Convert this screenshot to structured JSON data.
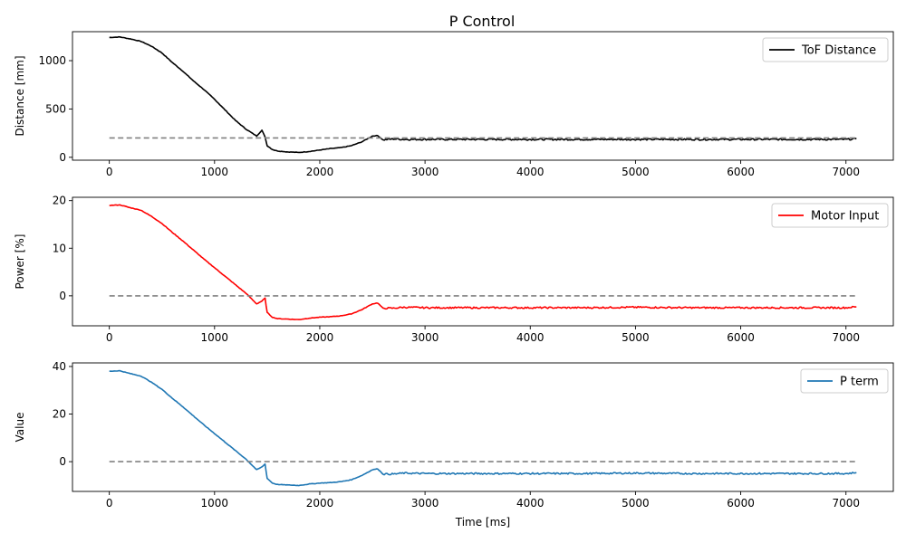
{
  "figure_title": "P Control",
  "chart_data": [
    {
      "type": "line",
      "title": "P Control",
      "xlabel": "",
      "ylabel": "Distance [mm]",
      "xlim": [
        -350,
        7450
      ],
      "ylim": [
        -30,
        1300
      ],
      "xticks": [
        "0",
        "1000",
        "2000",
        "3000",
        "4000",
        "5000",
        "6000",
        "7000"
      ],
      "yticks": [
        "0",
        "500",
        "1000"
      ],
      "legend": "upper-right",
      "series": [
        {
          "name": "ToF Distance",
          "color": "#000000",
          "x": [
            0,
            100,
            200,
            300,
            400,
            500,
            600,
            700,
            800,
            900,
            1000,
            1100,
            1200,
            1300,
            1400,
            1450,
            1480,
            1500,
            1550,
            1600,
            1700,
            1800,
            1900,
            2000,
            2100,
            2200,
            2300,
            2400,
            2500,
            2550,
            2600,
            2700,
            2800,
            3000,
            3500,
            4000,
            4500,
            5000,
            5500,
            6000,
            6500,
            7000,
            7100
          ],
          "y": [
            1240,
            1245,
            1225,
            1200,
            1150,
            1080,
            980,
            890,
            790,
            700,
            600,
            490,
            380,
            290,
            220,
            280,
            210,
            120,
            80,
            65,
            55,
            50,
            60,
            75,
            90,
            100,
            120,
            160,
            220,
            225,
            180,
            190,
            185,
            185,
            185,
            185,
            185,
            185,
            185,
            185,
            185,
            185,
            190
          ]
        },
        {
          "name": "",
          "color": "#808080",
          "dashed": true,
          "x": [
            0,
            7100
          ],
          "y": [
            200,
            200
          ]
        }
      ]
    },
    {
      "type": "line",
      "xlabel": "",
      "ylabel": "Power [%]",
      "xlim": [
        -350,
        7450
      ],
      "ylim": [
        -6.3,
        20.7
      ],
      "xticks": [
        "0",
        "1000",
        "2000",
        "3000",
        "4000",
        "5000",
        "6000",
        "7000"
      ],
      "yticks": [
        "0",
        "10",
        "20"
      ],
      "legend": "upper-right",
      "series": [
        {
          "name": "Motor Input",
          "color": "#ff0000",
          "x": [
            0,
            100,
            200,
            300,
            400,
            500,
            600,
            700,
            800,
            900,
            1000,
            1100,
            1200,
            1300,
            1400,
            1450,
            1480,
            1500,
            1550,
            1600,
            1700,
            1800,
            1900,
            2000,
            2100,
            2200,
            2300,
            2400,
            2500,
            2550,
            2600,
            2700,
            2800,
            3000,
            3500,
            4000,
            4500,
            5000,
            5500,
            6000,
            6500,
            7000,
            7100
          ],
          "y": [
            19,
            19.1,
            18.5,
            18,
            16.7,
            15.2,
            13.3,
            11.5,
            9.6,
            7.7,
            5.9,
            4.1,
            2.3,
            0.5,
            -1.7,
            -1.1,
            -0.5,
            -3.5,
            -4.5,
            -4.8,
            -4.9,
            -5,
            -4.7,
            -4.5,
            -4.4,
            -4.2,
            -3.8,
            -2.9,
            -1.7,
            -1.5,
            -2.6,
            -2.6,
            -2.4,
            -2.5,
            -2.5,
            -2.5,
            -2.5,
            -2.4,
            -2.5,
            -2.5,
            -2.5,
            -2.5,
            -2.3
          ]
        },
        {
          "name": "",
          "color": "#808080",
          "dashed": true,
          "x": [
            0,
            7100
          ],
          "y": [
            0,
            0
          ]
        }
      ]
    },
    {
      "type": "line",
      "xlabel": "Time [ms]",
      "ylabel": "Value",
      "xlim": [
        -350,
        7450
      ],
      "ylim": [
        -12.5,
        41.5
      ],
      "xticks": [
        "0",
        "1000",
        "2000",
        "3000",
        "4000",
        "5000",
        "6000",
        "7000"
      ],
      "yticks": [
        "0",
        "20",
        "40"
      ],
      "legend": "upper-right",
      "series": [
        {
          "name": "P term",
          "color": "#1f77b4",
          "x": [
            0,
            100,
            200,
            300,
            400,
            500,
            600,
            700,
            800,
            900,
            1000,
            1100,
            1200,
            1300,
            1400,
            1450,
            1480,
            1500,
            1550,
            1600,
            1700,
            1800,
            1900,
            2000,
            2100,
            2200,
            2300,
            2400,
            2500,
            2550,
            2600,
            2700,
            2800,
            3000,
            3500,
            4000,
            4500,
            5000,
            5500,
            6000,
            6500,
            7000,
            7100
          ],
          "y": [
            38,
            38.2,
            37,
            36,
            33.4,
            30.4,
            26.6,
            23,
            19.2,
            15.4,
            11.8,
            8.2,
            4.6,
            1,
            -3.4,
            -2.2,
            -1,
            -7,
            -9,
            -9.6,
            -9.8,
            -10,
            -9.4,
            -9,
            -8.8,
            -8.4,
            -7.6,
            -5.8,
            -3.4,
            -3,
            -5.2,
            -5.2,
            -4.8,
            -5,
            -5,
            -5,
            -5,
            -4.8,
            -5,
            -5,
            -5,
            -5,
            -4.6
          ]
        },
        {
          "name": "",
          "color": "#808080",
          "dashed": true,
          "x": [
            0,
            7100
          ],
          "y": [
            0,
            0
          ]
        }
      ]
    }
  ]
}
